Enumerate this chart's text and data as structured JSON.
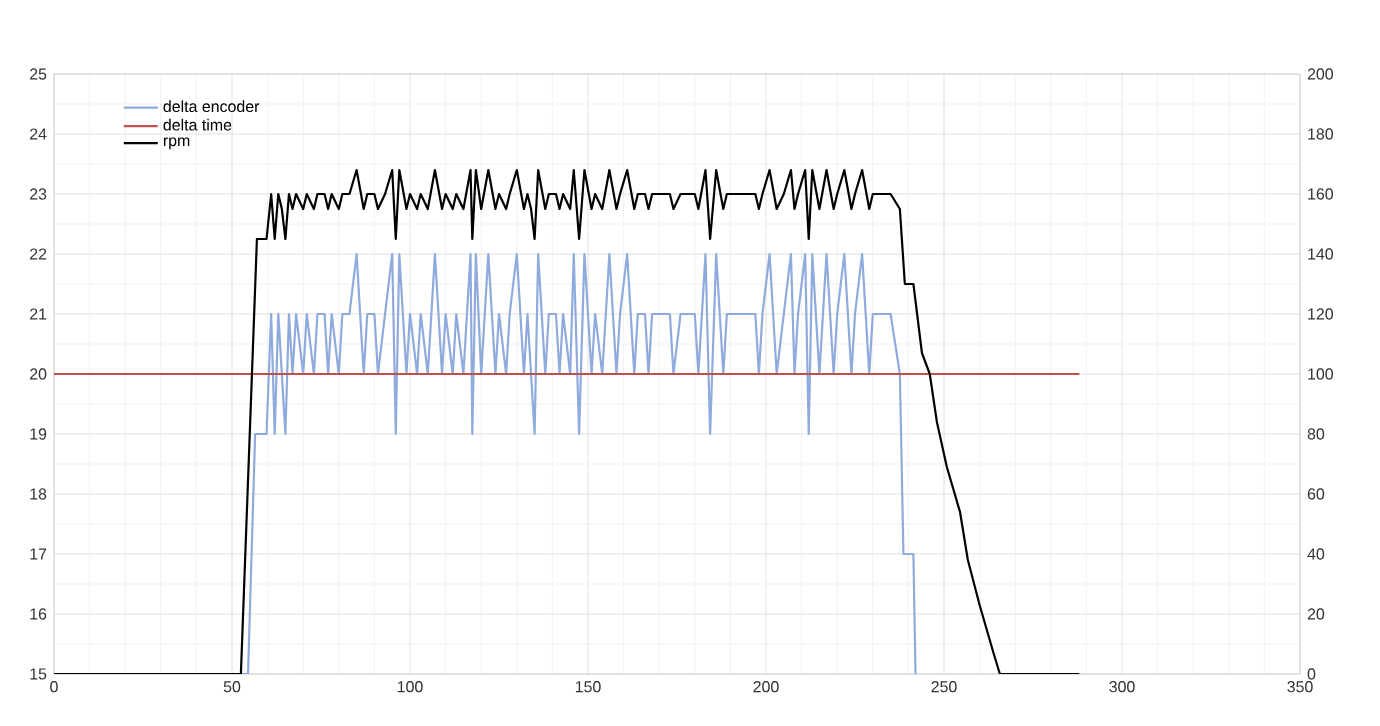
{
  "chart_data": {
    "type": "line",
    "xlim": [
      0,
      350
    ],
    "xticks": [
      0,
      50,
      100,
      150,
      200,
      250,
      300,
      350
    ],
    "ylim": [
      15,
      25
    ],
    "yticks": [
      15,
      16,
      17,
      18,
      19,
      20,
      21,
      22,
      23,
      24,
      25
    ],
    "y2lim": [
      0,
      200
    ],
    "y2ticks": [
      0,
      20,
      40,
      60,
      80,
      100,
      120,
      140,
      160,
      180,
      200
    ],
    "grid": true,
    "legend": "top left",
    "series": [
      {
        "name": "delta encoder",
        "color": "#8faadc",
        "x": [
          0,
          54.5,
          56.5,
          59.7,
          61,
          62,
          63,
          64,
          65,
          66,
          67,
          68,
          70,
          71,
          73,
          74,
          76,
          77,
          78,
          80,
          81,
          83,
          85,
          87,
          88,
          90,
          91,
          93,
          95,
          96,
          97,
          99,
          100,
          102,
          103,
          105,
          107,
          109,
          110,
          112,
          113,
          115,
          117,
          117.5,
          118.5,
          120,
          122,
          124,
          125,
          127,
          128,
          130,
          132,
          133,
          134,
          135,
          136,
          138,
          139,
          141,
          142,
          143,
          145,
          146,
          147.5,
          149,
          151,
          152,
          154,
          156,
          158,
          159,
          161,
          163,
          164,
          166,
          167,
          168,
          173,
          174,
          176,
          180,
          181,
          183,
          184.3,
          186,
          188,
          189,
          197,
          198,
          199,
          201,
          203,
          205,
          207,
          208,
          209,
          211,
          212,
          213,
          215,
          217,
          219,
          220,
          222,
          224,
          225,
          227,
          229,
          230,
          235,
          237.6,
          238.6,
          241.4,
          242
        ],
        "values": [
          15,
          15,
          19,
          19,
          21,
          19,
          21,
          20,
          19,
          21,
          20,
          21,
          20,
          21,
          20,
          21,
          21,
          20,
          21,
          20,
          21,
          21,
          22,
          20,
          21,
          21,
          20,
          21,
          22,
          19,
          22,
          20,
          21,
          20,
          21,
          20,
          22,
          20,
          21,
          20,
          21,
          20,
          22,
          19,
          22,
          20,
          22,
          20,
          21,
          20,
          21,
          22,
          20,
          21,
          20,
          19,
          22,
          20,
          21,
          21,
          20,
          21,
          20,
          22,
          19,
          22,
          20,
          21,
          20,
          22,
          20,
          21,
          22,
          20,
          21,
          21,
          20,
          21,
          21,
          20,
          21,
          21,
          20,
          22,
          19,
          22,
          20,
          21,
          21,
          20,
          21,
          22,
          20,
          21,
          22,
          20,
          21,
          22,
          19,
          22,
          20,
          22,
          20,
          21,
          22,
          20,
          21,
          22,
          20,
          21,
          21,
          20,
          17,
          17,
          15
        ]
      },
      {
        "name": "delta time",
        "color": "#c0504d",
        "x": [
          0,
          288
        ],
        "values": [
          20,
          20
        ]
      },
      {
        "name": "rpm",
        "color": "#000000",
        "axis": "y2",
        "x": [
          0,
          52.5,
          57,
          59.7,
          61,
          62,
          63,
          64,
          65,
          66,
          67,
          68,
          70,
          71,
          73,
          74,
          76,
          77,
          78,
          80,
          81,
          83,
          85,
          87,
          88,
          90,
          91,
          93,
          95,
          96,
          97,
          99,
          100,
          102,
          103,
          105,
          107,
          109,
          110,
          112,
          113,
          115,
          117,
          117.5,
          118.5,
          120,
          122,
          124,
          125,
          127,
          128,
          130,
          132,
          133,
          134,
          135,
          136,
          138,
          139,
          141,
          142,
          143,
          145,
          146,
          147.5,
          149,
          151,
          152,
          154,
          156,
          158,
          159,
          161,
          163,
          164,
          166,
          167,
          168,
          173,
          174,
          176,
          180,
          181,
          183,
          184.3,
          186,
          188,
          189,
          197,
          198,
          199,
          201,
          203,
          205,
          207,
          208,
          209,
          211,
          212,
          213,
          215,
          217,
          219,
          220,
          222,
          224,
          225,
          227,
          229,
          230,
          235,
          237.6,
          239,
          241.4,
          243.8,
          246,
          248,
          250.8,
          254.5,
          256.7,
          260,
          263.9,
          265.7,
          288
        ],
        "values": [
          0,
          0,
          145,
          145,
          160,
          145,
          160,
          155,
          145,
          160,
          155,
          160,
          155,
          160,
          155,
          160,
          160,
          155,
          160,
          155,
          160,
          160,
          168,
          155,
          160,
          160,
          155,
          160,
          168,
          145,
          168,
          155,
          160,
          155,
          160,
          155,
          168,
          155,
          160,
          155,
          160,
          155,
          168,
          145,
          168,
          155,
          168,
          155,
          160,
          155,
          160,
          168,
          155,
          160,
          155,
          145,
          168,
          155,
          160,
          160,
          155,
          160,
          155,
          168,
          145,
          168,
          155,
          160,
          155,
          168,
          155,
          160,
          168,
          155,
          160,
          160,
          155,
          160,
          160,
          155,
          160,
          160,
          155,
          168,
          145,
          168,
          155,
          160,
          160,
          155,
          160,
          168,
          155,
          160,
          168,
          155,
          160,
          168,
          145,
          168,
          155,
          168,
          155,
          160,
          168,
          155,
          160,
          168,
          155,
          160,
          160,
          155,
          130,
          130,
          107,
          100,
          84,
          69,
          54,
          38,
          23,
          7,
          0,
          0
        ]
      }
    ]
  }
}
